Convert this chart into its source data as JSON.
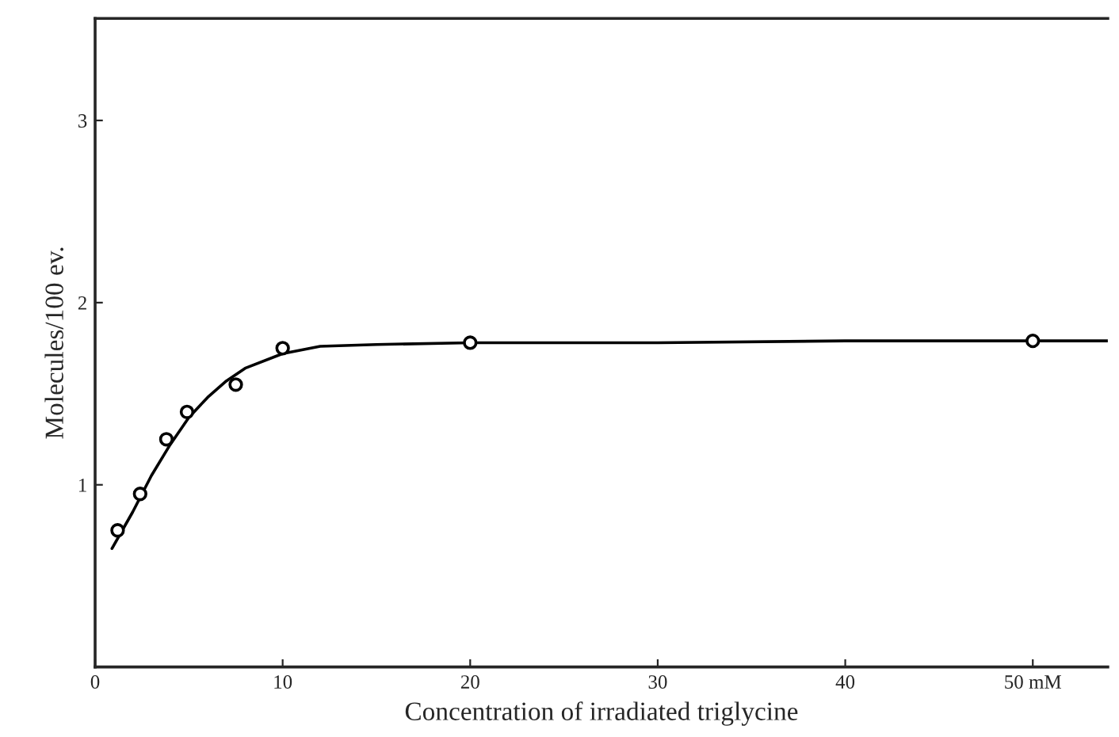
{
  "chart_data": {
    "type": "line",
    "xlabel": "Concentration of irradiated triglycine",
    "ylabel": "Molecules/100 ev.",
    "xlim": [
      0,
      54
    ],
    "ylim": [
      0,
      3.56
    ],
    "xticks": [
      0,
      10,
      20,
      30,
      40,
      {
        "value": 50,
        "label": "50 mM"
      }
    ],
    "yticks": [
      1,
      2,
      3
    ],
    "series": [
      {
        "color": "#000000",
        "marker": "none",
        "x": [
          0.9,
          2,
          3,
          4,
          5,
          6,
          7,
          8,
          10,
          12,
          15,
          20,
          30,
          40,
          50,
          54
        ],
        "values": [
          0.65,
          0.85,
          1.05,
          1.22,
          1.37,
          1.48,
          1.57,
          1.64,
          1.72,
          1.76,
          1.77,
          1.78,
          1.78,
          1.79,
          1.79,
          1.79
        ]
      },
      {
        "type": "scatter",
        "color": "#000000",
        "marker": "circle",
        "x": [
          1.2,
          2.4,
          3.8,
          4.9,
          7.5,
          10,
          20,
          50
        ],
        "values": [
          0.75,
          0.95,
          1.25,
          1.4,
          1.55,
          1.75,
          1.78,
          1.79
        ]
      }
    ],
    "grid": false,
    "legend": false
  }
}
